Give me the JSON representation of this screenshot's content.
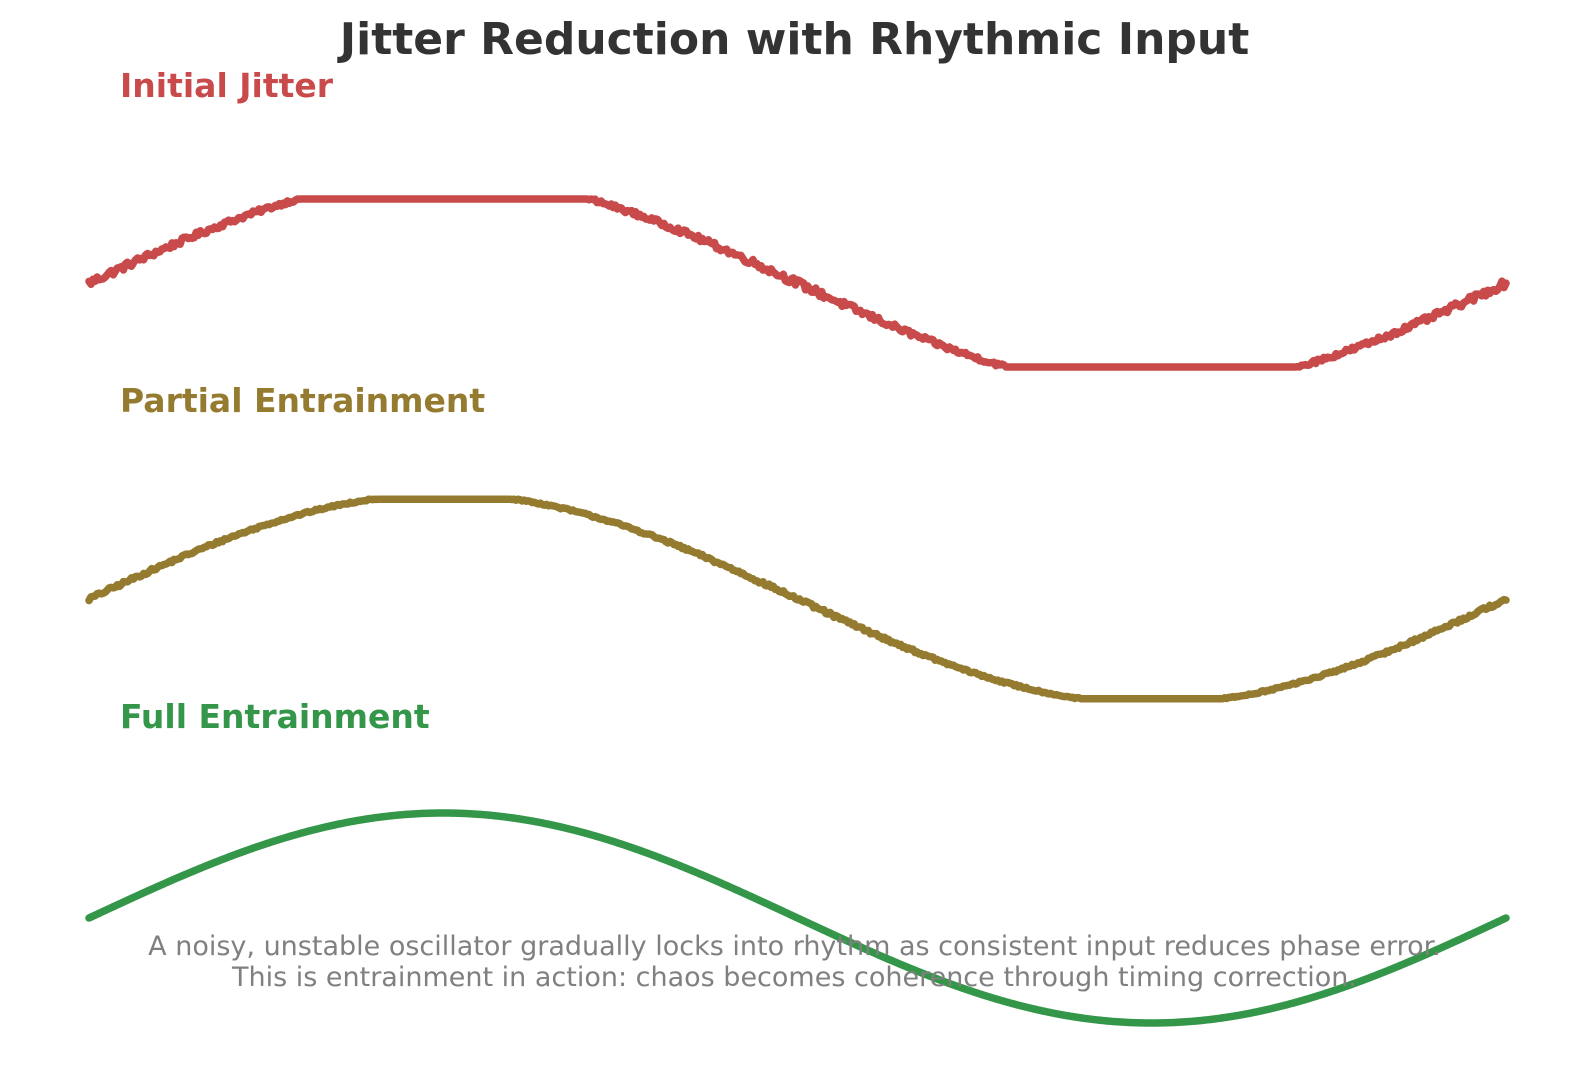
{
  "chart_data": {
    "type": "line",
    "title": "Jitter Reduction with Rhythmic Input",
    "caption": [
      "A noisy, unstable oscillator gradually locks into rhythm as consistent input reduces phase error.",
      "This is entrainment in action: chaos becomes coherence through timing correction."
    ],
    "xlabel": "",
    "ylabel": "",
    "grid": false,
    "axes_visible": false,
    "x_range": [
      0,
      6.283
    ],
    "series": [
      {
        "name": "Initial Jitter",
        "color": "#c94a4a",
        "noise_level": 0.3,
        "shape": "clipped sine",
        "clip": [
          -0.8,
          0.8
        ]
      },
      {
        "name": "Partial Entrainment",
        "color": "#957b30",
        "noise_level": 0.15,
        "shape": "clipped sine",
        "clip": [
          -0.95,
          0.95
        ]
      },
      {
        "name": "Full Entrainment",
        "color": "#339648",
        "noise_level": 0.0,
        "shape": "sine",
        "clip": [
          -1,
          1
        ]
      }
    ]
  }
}
